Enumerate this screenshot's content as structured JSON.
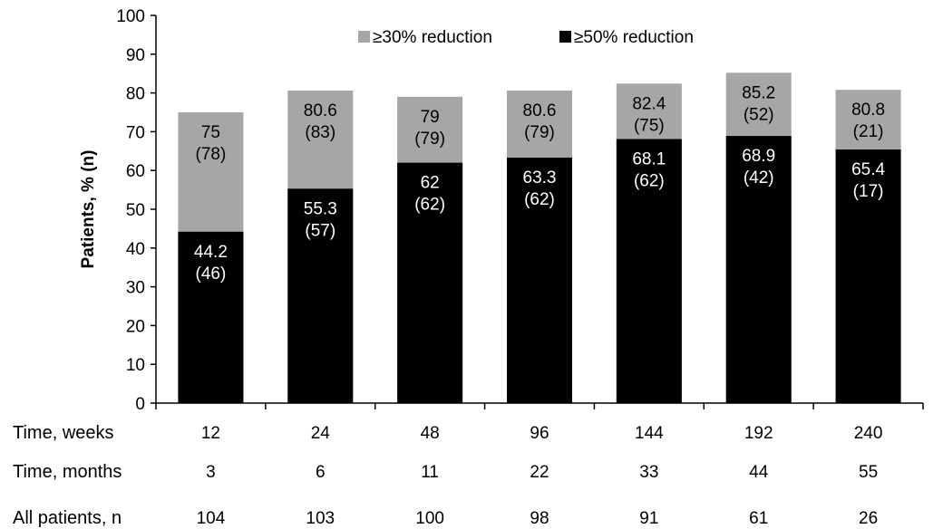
{
  "chart_data": {
    "type": "bar",
    "stacked_overlay": true,
    "ylabel": "Patients, % (n)",
    "ylim": [
      0,
      100
    ],
    "yticks": [
      0,
      10,
      20,
      30,
      40,
      50,
      60,
      70,
      80,
      90,
      100
    ],
    "grid": false,
    "legend_position": "top",
    "categories": [
      "12",
      "24",
      "48",
      "96",
      "144",
      "192",
      "240"
    ],
    "series": [
      {
        "name": "≥30% reduction",
        "color": "#a6a6a6",
        "values": [
          75,
          80.6,
          79,
          80.6,
          82.4,
          85.2,
          80.8
        ],
        "counts": [
          "(78)",
          "(83)",
          "(79)",
          "(79)",
          "(75)",
          "(52)",
          "(21)"
        ],
        "labels": [
          "75",
          "80.6",
          "79",
          "80.6",
          "82.4",
          "85.2",
          "80.8"
        ]
      },
      {
        "name": "≥50% reduction",
        "color": "#000000",
        "values": [
          44.2,
          55.3,
          62,
          63.3,
          68.1,
          68.9,
          65.4
        ],
        "counts": [
          "(46)",
          "(57)",
          "(62)",
          "(62)",
          "(62)",
          "(42)",
          "(17)"
        ],
        "labels": [
          "44.2",
          "55.3",
          "62",
          "63.3",
          "68.1",
          "68.9",
          "65.4"
        ]
      }
    ],
    "table_rows": [
      {
        "title": "Time, weeks",
        "cells": [
          "12",
          "24",
          "48",
          "96",
          "144",
          "192",
          "240"
        ]
      },
      {
        "title": "Time, months",
        "cells": [
          "3",
          "6",
          "11",
          "22",
          "33",
          "44",
          "55"
        ]
      },
      {
        "title": "All patients, n",
        "cells": [
          "104",
          "103",
          "100",
          "98",
          "91",
          "61",
          "26"
        ]
      }
    ]
  }
}
